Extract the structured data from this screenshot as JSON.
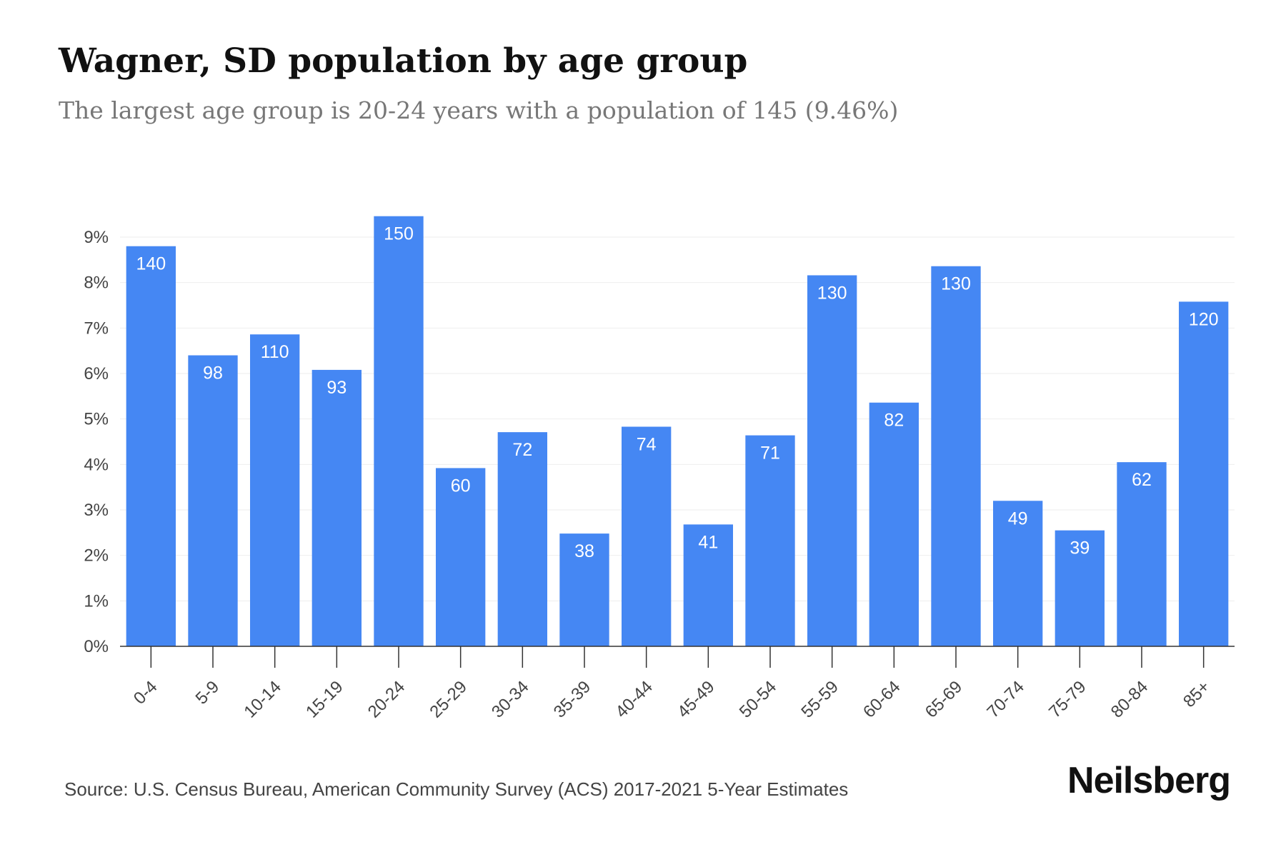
{
  "title": "Wagner, SD population by age group",
  "subtitle": "The largest age group is 20-24 years with a population of 145 (9.46%)",
  "source": "Source: U.S. Census Bureau, American Community Survey (ACS) 2017-2021 5-Year Estimates",
  "brand": "Neilsberg",
  "colors": {
    "bar": "#4587f3",
    "grid": "#eeeeee",
    "axis": "#333333"
  },
  "chart_data": {
    "type": "bar",
    "title": "Wagner, SD population by age group",
    "subtitle": "The largest age group is 20-24 years with a population of 145 (9.46%)",
    "xlabel": "",
    "ylabel": "",
    "categories": [
      "0-4",
      "5-9",
      "10-14",
      "15-19",
      "20-24",
      "25-29",
      "30-34",
      "35-39",
      "40-44",
      "45-49",
      "50-54",
      "55-59",
      "60-64",
      "65-69",
      "70-74",
      "75-79",
      "80-84",
      "85+"
    ],
    "values": [
      8.8,
      6.4,
      6.86,
      6.08,
      9.46,
      3.92,
      4.71,
      2.48,
      4.83,
      2.68,
      4.64,
      8.16,
      5.36,
      8.36,
      3.2,
      2.55,
      4.05,
      7.58
    ],
    "data_labels": [
      "140",
      "98",
      "110",
      "93",
      "150",
      "60",
      "72",
      "38",
      "74",
      "41",
      "71",
      "130",
      "82",
      "130",
      "49",
      "39",
      "62",
      "120"
    ],
    "ylim": [
      0,
      9
    ],
    "yticks": [
      0,
      1,
      2,
      3,
      4,
      5,
      6,
      7,
      8,
      9
    ],
    "ytick_labels": [
      "0%",
      "1%",
      "2%",
      "3%",
      "4%",
      "5%",
      "6%",
      "7%",
      "8%",
      "9%"
    ],
    "grid": true,
    "legend": "none"
  }
}
